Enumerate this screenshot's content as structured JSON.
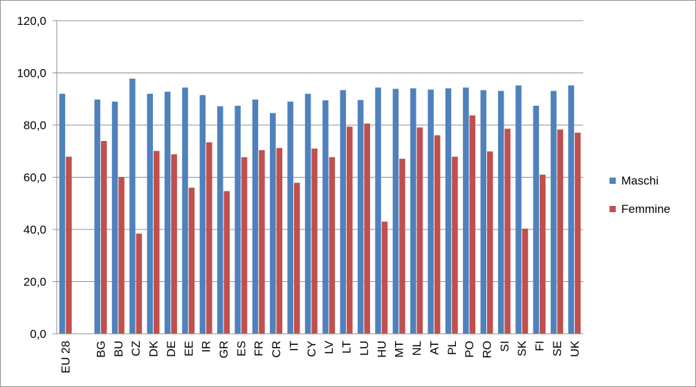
{
  "chart_data": {
    "type": "bar",
    "title": "",
    "xlabel": "",
    "ylabel": "",
    "ylim": [
      0,
      120
    ],
    "yticks": [
      "0,0",
      "20,0",
      "40,0",
      "60,0",
      "80,0",
      "100,0",
      "120,0"
    ],
    "grid": true,
    "legend_position": "right",
    "categories": [
      "EU 28",
      "",
      "BG",
      "BU",
      "CZ",
      "DK",
      "DE",
      "EE",
      "IR",
      "GR",
      "ES",
      "FR",
      "CR",
      "IT",
      "CY",
      "LV",
      "LT",
      "LU",
      "HU",
      "MT",
      "NL",
      "AT",
      "PL",
      "PO",
      "RO",
      "SI",
      "SK",
      "FI",
      "SE",
      "UK"
    ],
    "series": [
      {
        "name": "Maschi",
        "color": "#4f81bd",
        "values": [
          92.0,
          null,
          89.8,
          89.0,
          97.8,
          92.0,
          92.8,
          94.4,
          91.5,
          87.2,
          87.4,
          89.8,
          84.6,
          89.0,
          92.0,
          89.5,
          93.4,
          89.6,
          94.4,
          93.9,
          94.1,
          93.6,
          94.1,
          94.4,
          93.4,
          93.1,
          95.2,
          87.4,
          93.1,
          95.2
        ]
      },
      {
        "name": "Femmine",
        "color": "#c0504d",
        "values": [
          67.9,
          null,
          73.9,
          60.0,
          38.4,
          70.1,
          68.8,
          56.0,
          73.4,
          54.7,
          67.7,
          70.4,
          71.2,
          57.9,
          71.0,
          67.7,
          79.4,
          80.6,
          43.0,
          67.1,
          79.1,
          76.1,
          67.9,
          83.7,
          69.9,
          78.6,
          40.3,
          61.0,
          78.3,
          77.1
        ]
      }
    ]
  }
}
